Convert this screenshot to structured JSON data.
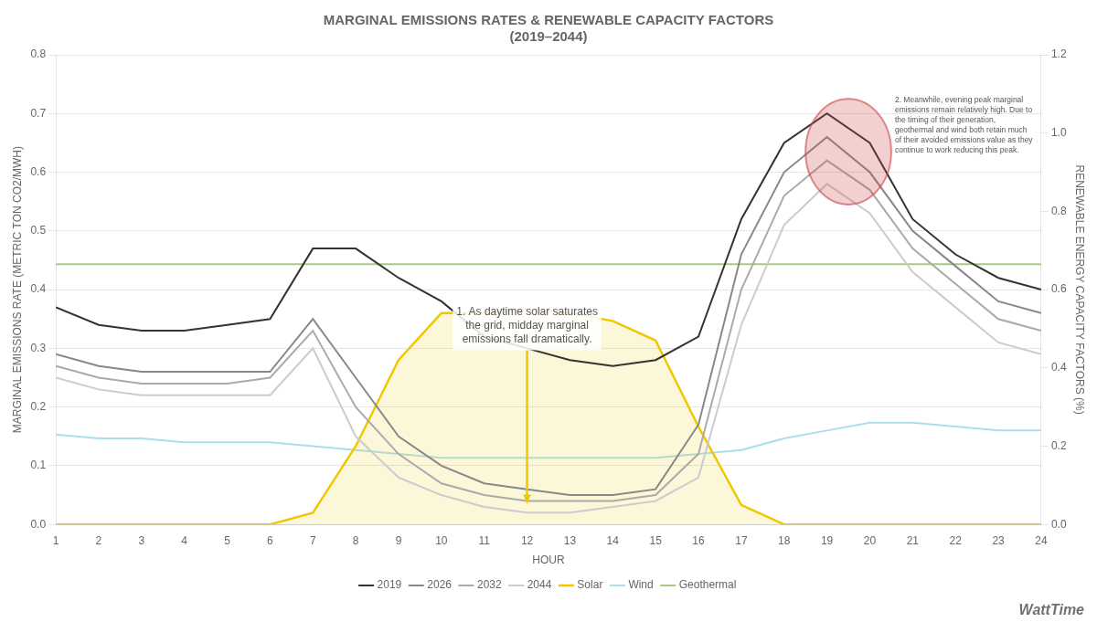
{
  "chart_data": {
    "type": "line",
    "title": "MARGINAL EMISSIONS RATES & RENEWABLE CAPACITY FACTORS\n(2019–2044)",
    "x_label": "HOUR",
    "y_label": "MARGINAL EMISSIONS RATE (METRIC TON CO2/MWH)",
    "y2_label": "RENEWABLE ENERGY CAPACITY FACTORS (%)",
    "x": [
      1,
      2,
      3,
      4,
      5,
      6,
      7,
      8,
      9,
      10,
      11,
      12,
      13,
      14,
      15,
      16,
      17,
      18,
      19,
      20,
      21,
      22,
      23,
      24
    ],
    "xlim": [
      1,
      24
    ],
    "xticks": [
      1,
      2,
      3,
      4,
      5,
      6,
      7,
      8,
      9,
      10,
      11,
      12,
      13,
      14,
      15,
      16,
      17,
      18,
      19,
      20,
      21,
      22,
      23,
      24
    ],
    "ylim": [
      0.0,
      0.8
    ],
    "yticks": [
      {
        "value": 0,
        "label": "0.0"
      },
      0.1,
      0.2,
      0.3,
      0.4,
      0.5,
      0.6,
      0.7,
      0.8
    ],
    "y2lim": [
      0,
      1.2
    ],
    "y2ticks": [
      {
        "value": 0,
        "label": "0.0"
      },
      0.2,
      0.4,
      0.6,
      0.8,
      {
        "value": 1,
        "label": "1.0"
      },
      1.2
    ],
    "grid": true,
    "legend": "bottom",
    "series": [
      {
        "name": "2019",
        "color": "#333333",
        "values": [
          0.37,
          0.34,
          0.33,
          0.33,
          0.34,
          0.35,
          0.47,
          0.47,
          0.42,
          0.38,
          0.32,
          0.3,
          0.28,
          0.27,
          0.28,
          0.32,
          0.52,
          0.65,
          0.7,
          0.65,
          0.52,
          0.46,
          0.42,
          0.4
        ]
      },
      {
        "name": "2026",
        "color": "#888888",
        "values": [
          0.29,
          0.27,
          0.26,
          0.26,
          0.26,
          0.26,
          0.35,
          0.25,
          0.15,
          0.1,
          0.07,
          0.06,
          0.05,
          0.05,
          0.06,
          0.17,
          0.46,
          0.6,
          0.66,
          0.6,
          0.5,
          0.44,
          0.38,
          0.36
        ]
      },
      {
        "name": "2032",
        "color": "#aaaaaa",
        "values": [
          0.27,
          0.25,
          0.24,
          0.24,
          0.24,
          0.25,
          0.33,
          0.2,
          0.12,
          0.07,
          0.05,
          0.04,
          0.04,
          0.04,
          0.05,
          0.12,
          0.4,
          0.56,
          0.62,
          0.57,
          0.47,
          0.41,
          0.35,
          0.33
        ]
      },
      {
        "name": "2044",
        "color": "#cccccc",
        "values": [
          0.25,
          0.23,
          0.22,
          0.22,
          0.22,
          0.22,
          0.3,
          0.15,
          0.08,
          0.05,
          0.03,
          0.02,
          0.02,
          0.03,
          0.04,
          0.08,
          0.34,
          0.51,
          0.58,
          0.53,
          0.43,
          0.37,
          0.31,
          0.29
        ]
      },
      {
        "name": "Solar",
        "color": "#f0c800",
        "type": "area",
        "axis": "y2",
        "values": [
          0.0,
          0.0,
          0.0,
          0.0,
          0.0,
          0.0,
          0.03,
          0.2,
          0.42,
          0.54,
          0.54,
          0.55,
          0.54,
          0.52,
          0.47,
          0.25,
          0.05,
          0.0,
          0.0,
          0.0,
          0.0,
          0.0,
          0.0,
          0.0
        ]
      },
      {
        "name": "Wind",
        "color": "#aaddee",
        "axis": "y2",
        "values": [
          0.23,
          0.22,
          0.22,
          0.21,
          0.21,
          0.21,
          0.2,
          0.19,
          0.18,
          0.17,
          0.17,
          0.17,
          0.17,
          0.17,
          0.17,
          0.18,
          0.19,
          0.22,
          0.24,
          0.26,
          0.26,
          0.25,
          0.24,
          0.24
        ]
      },
      {
        "name": "Geothermal",
        "color": "#aac880",
        "axis": "y2",
        "values": [
          0.665,
          0.665,
          0.665,
          0.665,
          0.665,
          0.665,
          0.665,
          0.665,
          0.665,
          0.665,
          0.665,
          0.665,
          0.665,
          0.665,
          0.665,
          0.665,
          0.665,
          0.665,
          0.665,
          0.665,
          0.665,
          0.665,
          0.665,
          0.665
        ]
      }
    ],
    "annotations": [
      {
        "text": "1. As daytime solar saturates\nthe grid, midday marginal\nemissions fall dramatically.",
        "x": 12,
        "y": 0.3,
        "arrow": [
          12,
          0.035
        ],
        "arrow_color": "#f0c800"
      },
      {
        "text": "2. Meanwhile, evening peak marginal\nemissions remain relatively high. Due to\nthe timing of their generation,\ngeothermal and wind both retain much\nof their avoided emissions value as they\ncontinue to work reducing this peak.",
        "x": 20.5,
        "y": 0.73
      }
    ],
    "ellipse": {
      "x": 19.5,
      "y": 0.635,
      "width": 2.0,
      "height": 0.18,
      "color": "#cc4444"
    },
    "watermark": "WattTime"
  }
}
